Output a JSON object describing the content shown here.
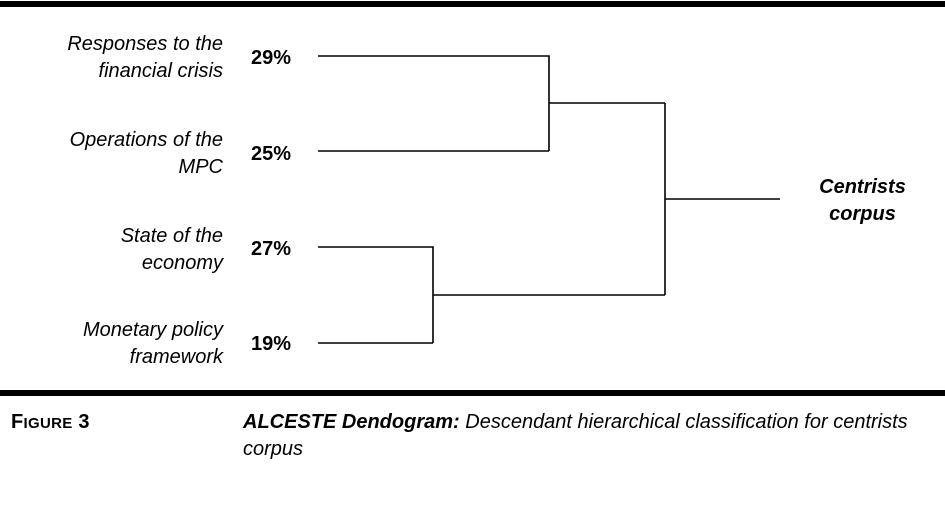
{
  "clusters": [
    {
      "label_line1": "Responses to the",
      "label_line2": "financial crisis",
      "percent": "29%"
    },
    {
      "label_line1": "Operations of the",
      "label_line2": "MPC",
      "percent": "25%"
    },
    {
      "label_line1": "State of the",
      "label_line2": "economy",
      "percent": "27%"
    },
    {
      "label_line1": "Monetary policy",
      "label_line2": "framework",
      "percent": "19%"
    }
  ],
  "root": {
    "line1": "Centrists",
    "line2": "corpus"
  },
  "figure": {
    "number_prefix": "F",
    "number_rest": "IGURE",
    "number_value": "3",
    "title": "ALCESTE Dendogram:",
    "caption": "Descendant hierarchical classification for centrists corpus"
  },
  "colors": {
    "ink": "#000000",
    "background": "#ffffff"
  }
}
